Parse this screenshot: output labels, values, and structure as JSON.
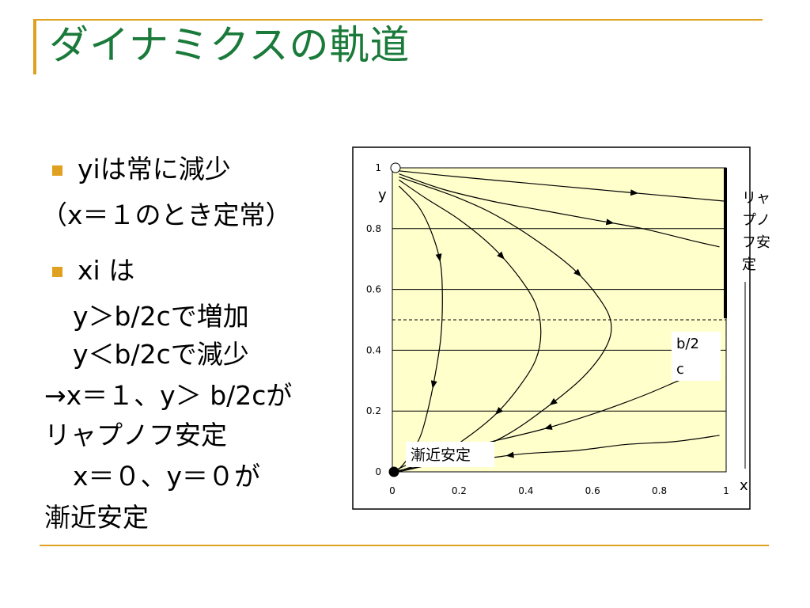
{
  "slide": {
    "title": "ダイナミクスの軌道",
    "lines": [
      "yiは常に減少",
      "（x＝１のとき定常）",
      "xi は",
      "y＞b/2cで増加",
      "y＜b/2cで減少",
      "→x＝１、y＞ b/2cが",
      "リャプノフ安定",
      "x＝０、y＝０が",
      "漸近安定"
    ],
    "accent_color": "#e0a020",
    "title_color": "#1a7a3a",
    "bullet_icon": "square-bullet-icon"
  },
  "chart_data": {
    "type": "line",
    "xlim": [
      0,
      1
    ],
    "ylim": [
      0,
      1
    ],
    "x_ticks": [
      "0",
      "0.2",
      "0.4",
      "0.6",
      "0.8",
      "1"
    ],
    "y_ticks": [
      "0",
      "0.2",
      "0.4",
      "0.6",
      "0.8",
      "1"
    ],
    "xlabel": "x",
    "ylabel": "y",
    "grid": "horizontal",
    "plot_background": "#ffffcc",
    "threshold_y": 0.5,
    "threshold_label": "b/2c",
    "stable_segment": {
      "x": 1,
      "y_from": 0.5,
      "y_to": 1,
      "label": "リャプノフ安定"
    },
    "attractor": {
      "x": 0,
      "y": 0,
      "label": "漸近安定"
    },
    "open_point": {
      "x": 0,
      "y": 1
    },
    "series": [
      {
        "points": [
          [
            0.02,
            0.99
          ],
          [
            0.2,
            0.97
          ],
          [
            0.4,
            0.95
          ],
          [
            0.6,
            0.93
          ],
          [
            0.8,
            0.91
          ],
          [
            1.0,
            0.89
          ]
        ],
        "arrows": [
          0.72
        ]
      },
      {
        "points": [
          [
            0.02,
            0.98
          ],
          [
            0.15,
            0.93
          ],
          [
            0.3,
            0.89
          ],
          [
            0.45,
            0.86
          ],
          [
            0.6,
            0.83
          ],
          [
            0.75,
            0.8
          ],
          [
            0.9,
            0.76
          ],
          [
            0.98,
            0.74
          ]
        ],
        "arrows": [
          0.66
        ]
      },
      {
        "points": [
          [
            0.02,
            0.97
          ],
          [
            0.1,
            0.94
          ],
          [
            0.2,
            0.9
          ],
          [
            0.3,
            0.85
          ],
          [
            0.42,
            0.77
          ],
          [
            0.54,
            0.67
          ],
          [
            0.62,
            0.57
          ],
          [
            0.655,
            0.49
          ],
          [
            0.64,
            0.41
          ],
          [
            0.57,
            0.31
          ],
          [
            0.46,
            0.21
          ],
          [
            0.34,
            0.12
          ],
          [
            0.2,
            0.05
          ],
          [
            0.06,
            0.01
          ],
          [
            0.01,
            0.0
          ]
        ],
        "arrows": [
          0.38,
          0.68
        ]
      },
      {
        "points": [
          [
            0.02,
            0.96
          ],
          [
            0.1,
            0.9
          ],
          [
            0.2,
            0.83
          ],
          [
            0.3,
            0.74
          ],
          [
            0.38,
            0.64
          ],
          [
            0.43,
            0.55
          ],
          [
            0.445,
            0.46
          ],
          [
            0.43,
            0.37
          ],
          [
            0.38,
            0.28
          ],
          [
            0.31,
            0.19
          ],
          [
            0.22,
            0.11
          ],
          [
            0.12,
            0.04
          ],
          [
            0.04,
            0.01
          ],
          [
            0.01,
            0.0
          ]
        ],
        "arrows": [
          0.3,
          0.72
        ]
      },
      {
        "points": [
          [
            0.02,
            0.94
          ],
          [
            0.08,
            0.87
          ],
          [
            0.12,
            0.78
          ],
          [
            0.145,
            0.68
          ],
          [
            0.15,
            0.56
          ],
          [
            0.145,
            0.44
          ],
          [
            0.13,
            0.33
          ],
          [
            0.11,
            0.22
          ],
          [
            0.085,
            0.12
          ],
          [
            0.05,
            0.05
          ],
          [
            0.02,
            0.01
          ],
          [
            0.0,
            0.0
          ]
        ],
        "arrows": [
          0.27,
          0.68
        ]
      },
      {
        "points": [
          [
            0.0,
            0.0
          ],
          [
            0.06,
            0.03
          ],
          [
            0.15,
            0.06
          ],
          [
            0.3,
            0.1
          ],
          [
            0.45,
            0.14
          ],
          [
            0.6,
            0.19
          ],
          [
            0.75,
            0.25
          ],
          [
            0.88,
            0.31
          ],
          [
            0.98,
            0.35
          ]
        ],
        "arrows": [
          0.47
        ],
        "reverse": true
      },
      {
        "points": [
          [
            0.0,
            0.0
          ],
          [
            0.1,
            0.02
          ],
          [
            0.25,
            0.04
          ],
          [
            0.4,
            0.06
          ],
          [
            0.55,
            0.07
          ],
          [
            0.7,
            0.09
          ],
          [
            0.85,
            0.1
          ],
          [
            0.98,
            0.12
          ]
        ],
        "arrows": [
          0.36
        ],
        "reverse": true
      }
    ]
  }
}
